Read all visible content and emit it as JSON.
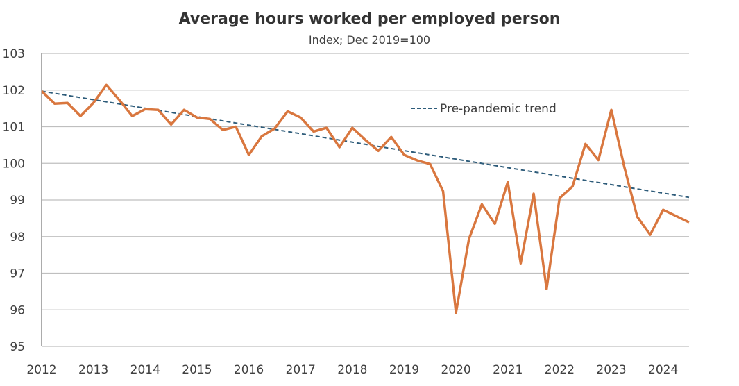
{
  "chart_data": {
    "type": "line",
    "title": "Average hours worked per employed person",
    "subtitle": "Index; Dec 2019=100",
    "xlabel": "",
    "ylabel": "",
    "ylim": [
      95,
      103
    ],
    "xlim": [
      2012,
      2024.5
    ],
    "yticks": [
      "95",
      "96",
      "97",
      "98",
      "99",
      "100",
      "101",
      "102",
      "103"
    ],
    "xticks": [
      "2012",
      "2013",
      "2014",
      "2015",
      "2016",
      "2017",
      "2018",
      "2019",
      "2020",
      "2021",
      "2022",
      "2023",
      "2024"
    ],
    "grid": true,
    "legend_position": "top-right",
    "x_start": 2012,
    "x_step": 0.25,
    "series": [
      {
        "name": "Average hours worked",
        "color": "#D9773F",
        "style": "solid",
        "values": [
          101.97,
          101.63,
          101.65,
          101.29,
          101.65,
          102.14,
          101.73,
          101.29,
          101.48,
          101.46,
          101.06,
          101.46,
          101.25,
          101.21,
          100.91,
          101.0,
          100.23,
          100.74,
          100.95,
          101.42,
          101.25,
          100.87,
          100.97,
          100.44,
          100.97,
          100.64,
          100.34,
          100.72,
          100.23,
          100.08,
          99.98,
          99.24,
          95.92,
          97.93,
          98.88,
          98.35,
          99.49,
          97.27,
          99.17,
          96.57,
          99.05,
          99.37,
          100.53,
          100.09,
          101.46,
          99.9,
          98.54,
          98.05,
          98.73,
          98.56,
          98.39
        ]
      },
      {
        "name": "Pre-pandemic trend",
        "color": "#2E5C7A",
        "style": "dashed",
        "x": [
          2012,
          2024.5
        ],
        "values": [
          101.97,
          99.07
        ]
      }
    ]
  }
}
